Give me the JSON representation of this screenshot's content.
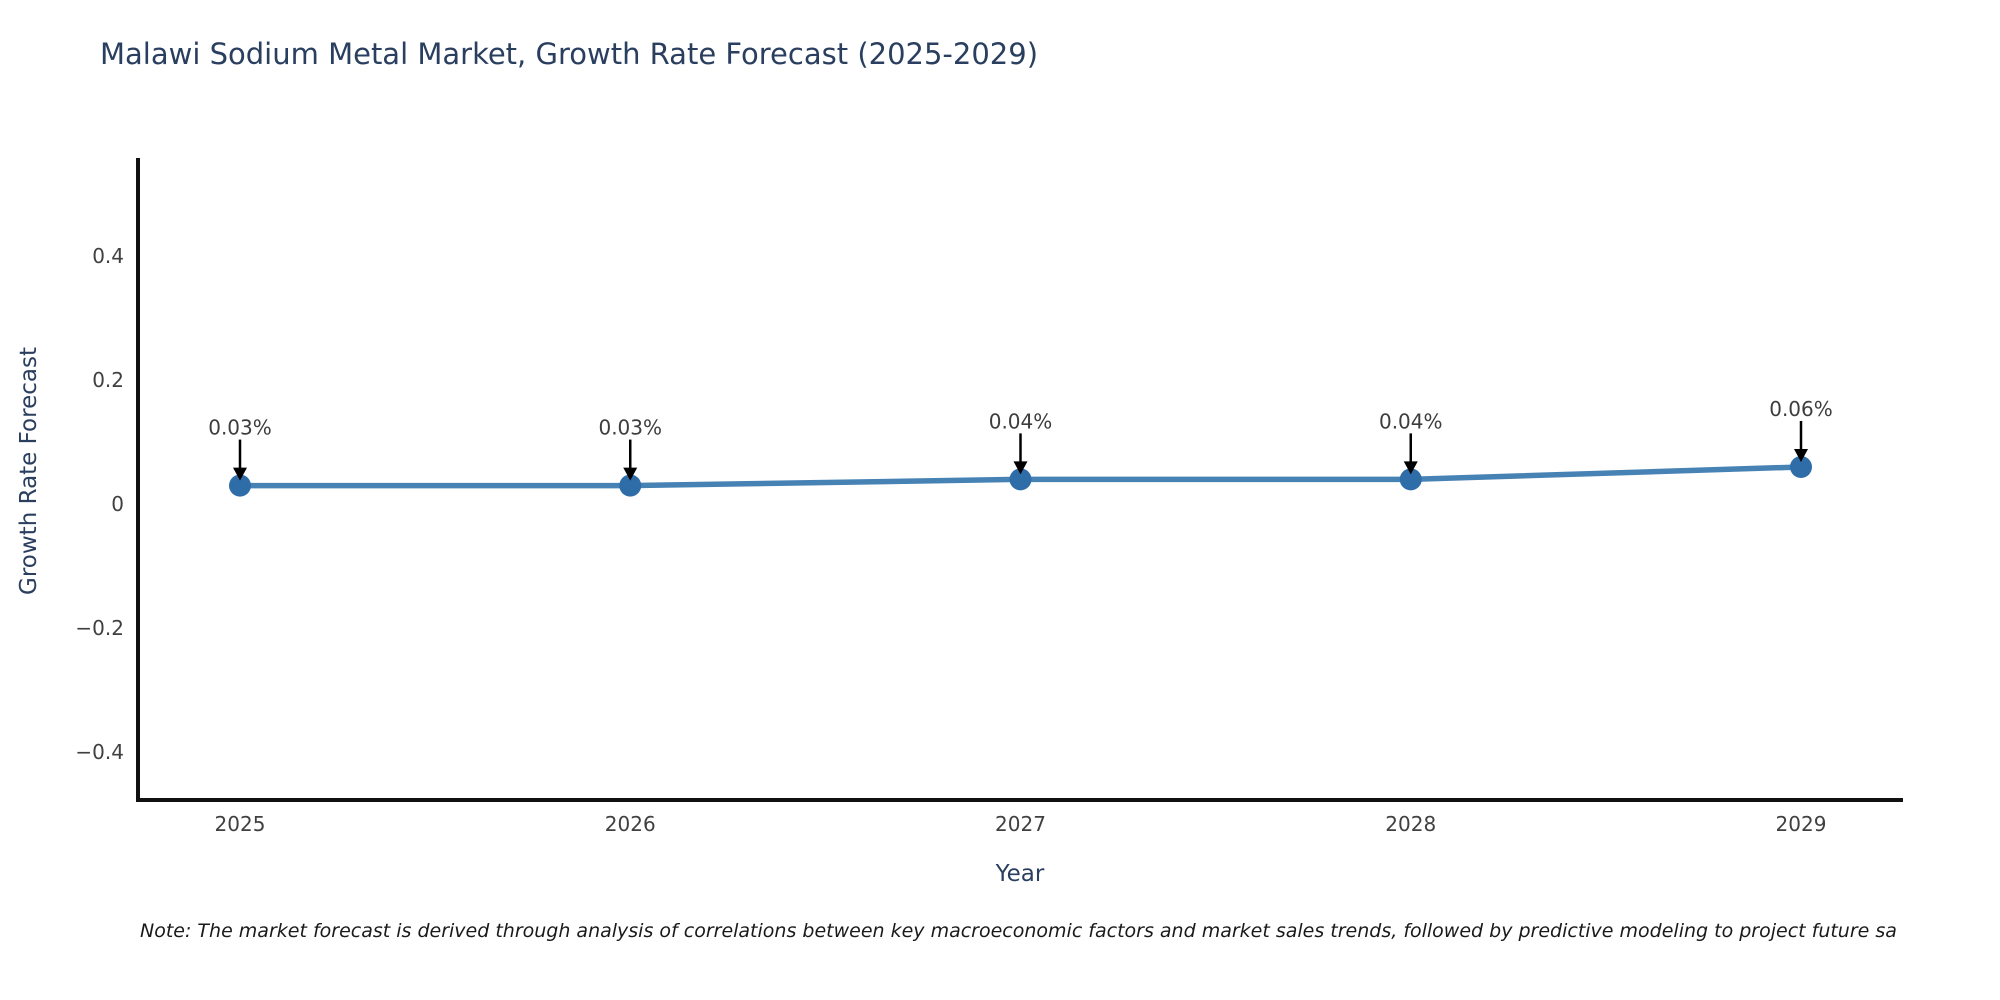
{
  "page": {
    "title": "Malawi Sodium Metal Market, Growth Rate Forecast (2025-2029)",
    "note": "Note: The market forecast is derived through analysis of correlations between key macroeconomic factors and market sales trends, followed by predictive modeling to project future sa"
  },
  "chart_data": {
    "type": "line",
    "title": "Malawi Sodium Metal Market, Growth Rate Forecast (2025-2029)",
    "xlabel": "Year",
    "ylabel": "Growth Rate Forecast",
    "categories": [
      "2025",
      "2026",
      "2027",
      "2028",
      "2029"
    ],
    "values": [
      0.03,
      0.03,
      0.04,
      0.04,
      0.06
    ],
    "point_labels": [
      "0.03%",
      "0.03%",
      "0.04%",
      "0.04%",
      "0.06%"
    ],
    "yticks": [
      -0.4,
      -0.2,
      0,
      0.2,
      0.4
    ],
    "ytick_labels": [
      "−0.4",
      "−0.2",
      "0",
      "0.2",
      "0.4"
    ],
    "ylim": [
      -0.477,
      0.555
    ],
    "grid": false,
    "legend": false,
    "annotation_arrows": "down-to-point",
    "colors": {
      "line": "#4682b4",
      "marker": "#2f6da8",
      "axis": "#111111",
      "annotation_text": "#3d3d3d",
      "tick_text": "#404040",
      "axis_title_text": "#2a3f5f",
      "title_text": "#2a3f5f",
      "background": "#ffffff"
    }
  }
}
